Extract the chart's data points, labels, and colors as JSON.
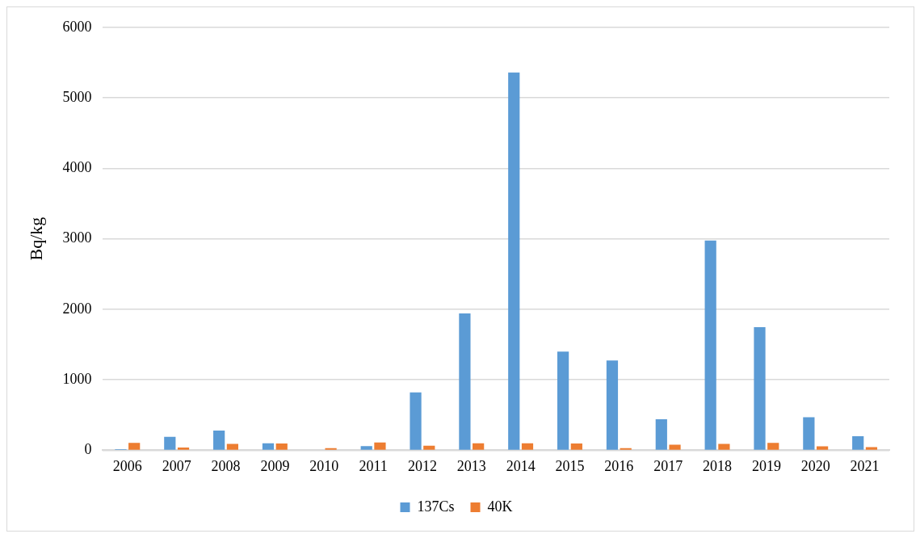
{
  "chart_data": {
    "type": "bar",
    "ylabel": "Bq/kg",
    "categories": [
      "2006",
      "2007",
      "2008",
      "2009",
      "2010",
      "2011",
      "2012",
      "2013",
      "2014",
      "2015",
      "2016",
      "2017",
      "2018",
      "2019",
      "2020",
      "2021"
    ],
    "series": [
      {
        "name": "137Cs",
        "color": "#5b9bd5",
        "values": [
          15,
          190,
          280,
          100,
          0,
          60,
          820,
          1940,
          5360,
          1400,
          1275,
          440,
          2975,
          1745,
          470,
          200
        ]
      },
      {
        "name": "40K",
        "color": "#ed7d31",
        "values": [
          105,
          40,
          90,
          95,
          30,
          110,
          65,
          100,
          100,
          95,
          30,
          80,
          90,
          105,
          55,
          45
        ]
      }
    ],
    "ylim": [
      0,
      6000
    ],
    "yticks": [
      0,
      1000,
      2000,
      3000,
      4000,
      5000,
      6000
    ],
    "grid": "y",
    "legend": "bottom"
  }
}
